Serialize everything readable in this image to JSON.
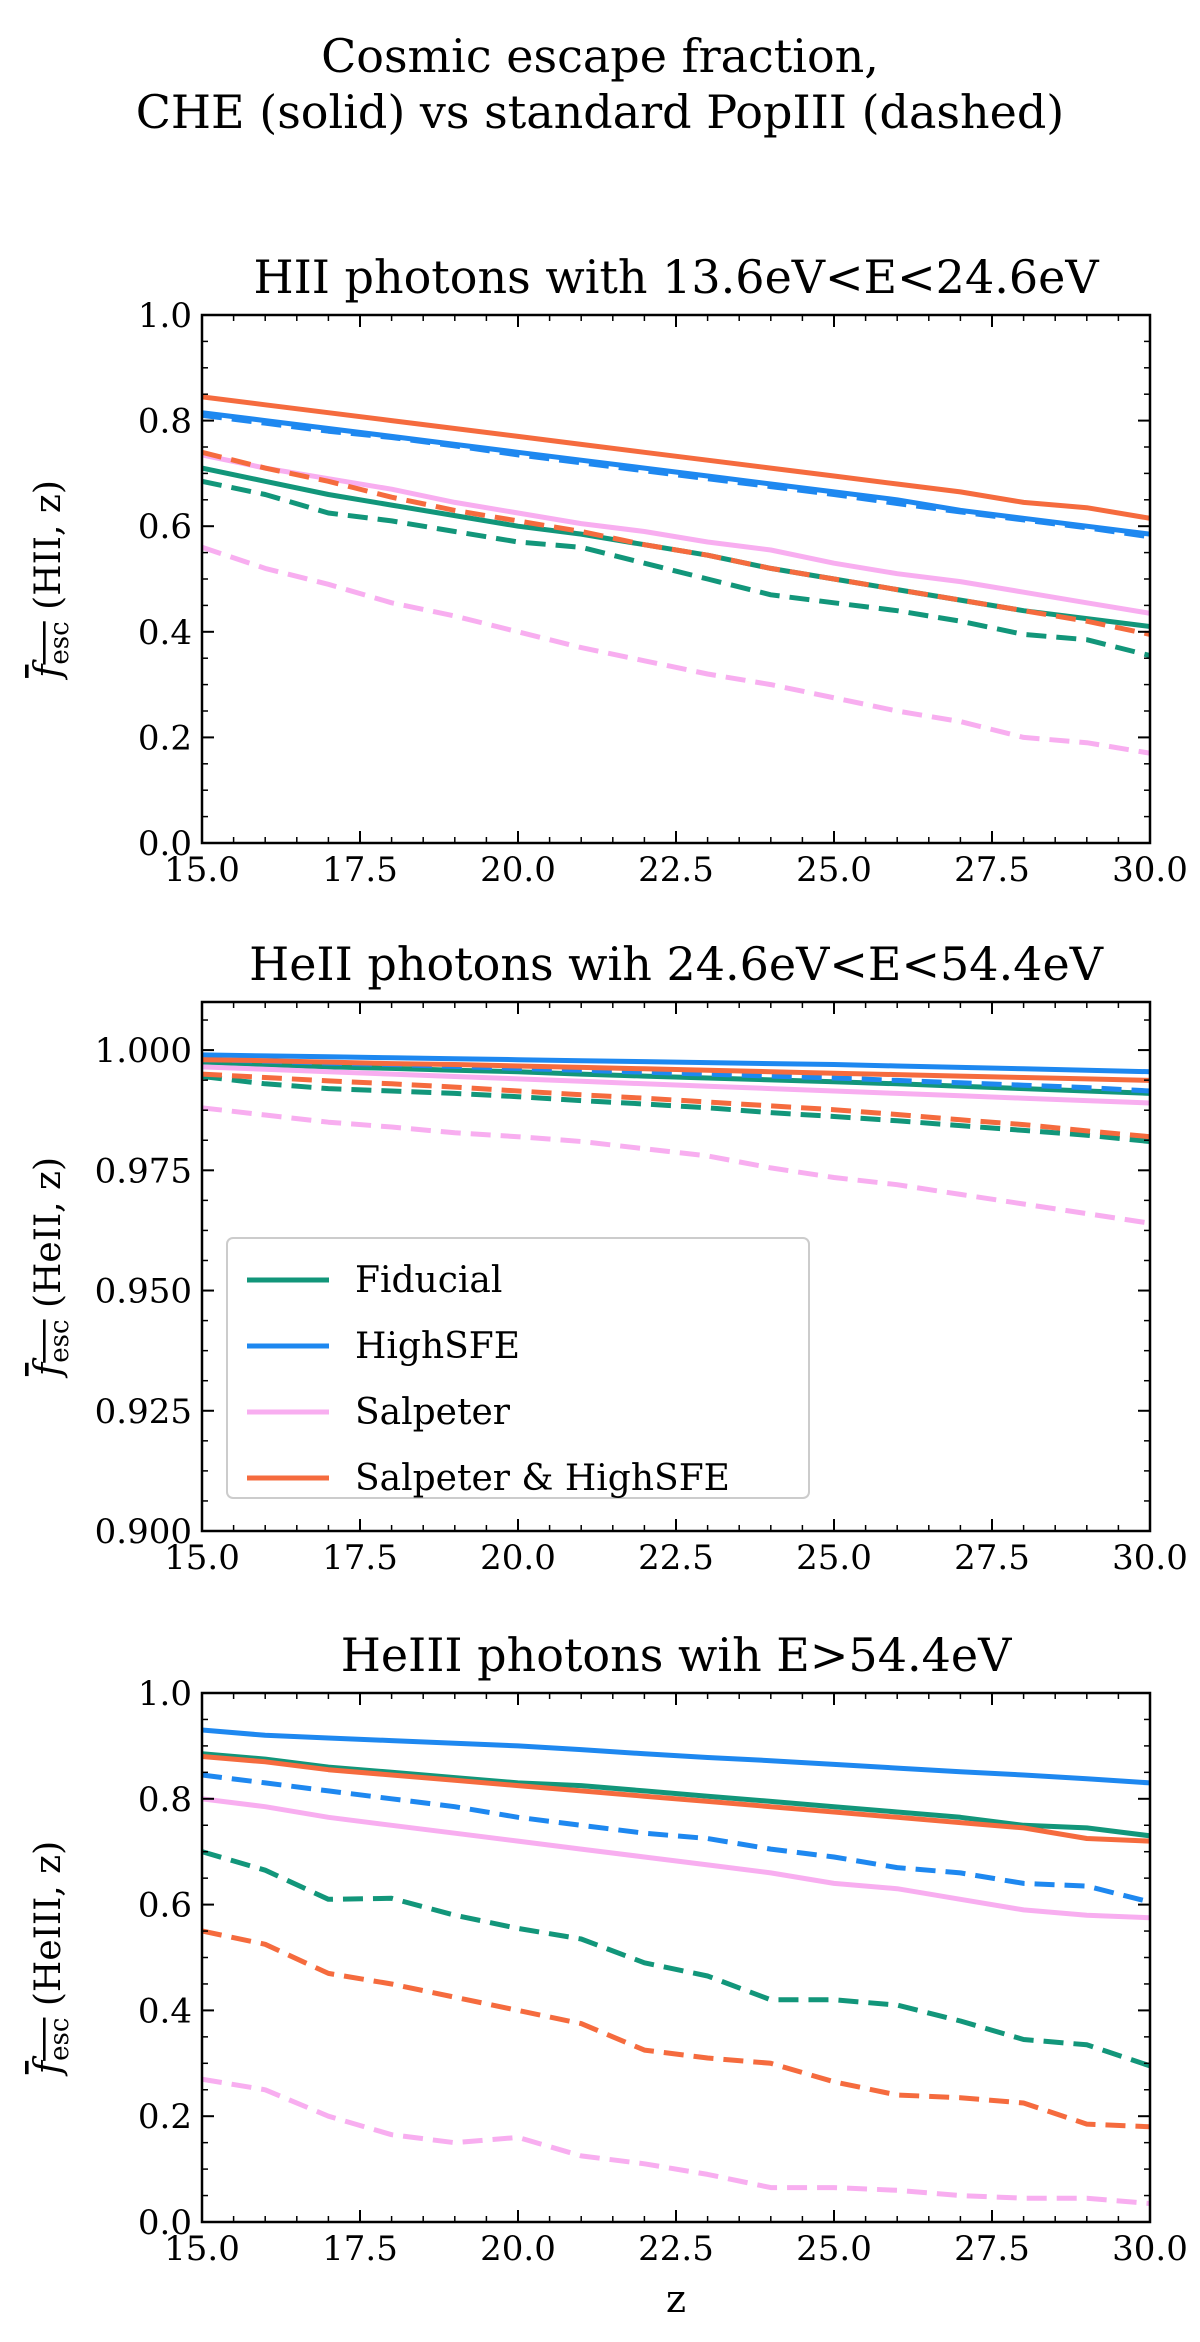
{
  "figure": {
    "title_line1": "Cosmic escape fraction,",
    "title_line2": "CHE (solid) vs standard PopIII (dashed)"
  },
  "colors": {
    "Fiducial": "#12967a",
    "HighSFE": "#1e88f0",
    "Salpeter": "#f8aef0",
    "Salpeter & HighSFE": "#f56b3e"
  },
  "chart_data": [
    {
      "type": "line",
      "title": "HII photons with 13.6eV<E<24.6eV",
      "xlabel": "",
      "ylabel": "f_esc (HII, z)",
      "ylabel_main": "f",
      "ylabel_sub": "esc",
      "ylabel_arg": " (HII, z)",
      "xlim": [
        15,
        30
      ],
      "ylim": [
        0,
        1
      ],
      "xticks": [
        15,
        17.5,
        20,
        22.5,
        25,
        27.5,
        30
      ],
      "xtick_labels": [
        "15.0",
        "17.5",
        "20.0",
        "22.5",
        "25.0",
        "27.5",
        "30.0"
      ],
      "yticks": [
        0,
        0.2,
        0.4,
        0.6,
        0.8,
        1.0
      ],
      "ytick_labels": [
        "0.0",
        "0.2",
        "0.4",
        "0.6",
        "0.8",
        "1.0"
      ],
      "x": [
        15,
        16,
        17,
        18,
        19,
        20,
        21,
        22,
        23,
        24,
        25,
        26,
        27,
        28,
        29,
        30
      ],
      "series": [
        {
          "name": "Fiducial",
          "style": "solid",
          "values": [
            0.71,
            0.685,
            0.66,
            0.64,
            0.62,
            0.6,
            0.585,
            0.565,
            0.545,
            0.52,
            0.5,
            0.48,
            0.46,
            0.44,
            0.425,
            0.41
          ]
        },
        {
          "name": "Fiducial",
          "style": "dashed",
          "values": [
            0.685,
            0.66,
            0.625,
            0.61,
            0.59,
            0.57,
            0.56,
            0.53,
            0.5,
            0.47,
            0.455,
            0.44,
            0.42,
            0.395,
            0.385,
            0.355
          ]
        },
        {
          "name": "HighSFE",
          "style": "solid",
          "values": [
            0.815,
            0.8,
            0.785,
            0.77,
            0.755,
            0.74,
            0.725,
            0.71,
            0.695,
            0.68,
            0.665,
            0.65,
            0.63,
            0.615,
            0.6,
            0.585
          ]
        },
        {
          "name": "HighSFE",
          "style": "dashed",
          "values": [
            0.81,
            0.795,
            0.78,
            0.768,
            0.752,
            0.735,
            0.72,
            0.705,
            0.69,
            0.675,
            0.66,
            0.643,
            0.627,
            0.612,
            0.597,
            0.58
          ]
        },
        {
          "name": "Salpeter",
          "style": "solid",
          "values": [
            0.735,
            0.71,
            0.69,
            0.67,
            0.645,
            0.625,
            0.605,
            0.59,
            0.57,
            0.555,
            0.53,
            0.51,
            0.495,
            0.475,
            0.455,
            0.435
          ]
        },
        {
          "name": "Salpeter",
          "style": "dashed",
          "values": [
            0.56,
            0.52,
            0.49,
            0.455,
            0.43,
            0.4,
            0.37,
            0.345,
            0.32,
            0.3,
            0.275,
            0.25,
            0.23,
            0.2,
            0.19,
            0.17
          ]
        },
        {
          "name": "Salpeter & HighSFE",
          "style": "solid",
          "values": [
            0.845,
            0.83,
            0.815,
            0.8,
            0.785,
            0.77,
            0.755,
            0.74,
            0.725,
            0.71,
            0.695,
            0.68,
            0.665,
            0.645,
            0.635,
            0.615
          ]
        },
        {
          "name": "Salpeter & HighSFE",
          "style": "dashed",
          "values": [
            0.74,
            0.71,
            0.685,
            0.655,
            0.63,
            0.61,
            0.59,
            0.565,
            0.545,
            0.52,
            0.5,
            0.48,
            0.46,
            0.44,
            0.42,
            0.395
          ]
        }
      ]
    },
    {
      "type": "line",
      "title": "HeII photons wih 24.6eV<E<54.4eV",
      "xlabel": "",
      "ylabel": "f_esc (HeII, z)",
      "ylabel_main": "f",
      "ylabel_sub": "esc",
      "ylabel_arg": " (HeII, z)",
      "xlim": [
        15,
        30
      ],
      "ylim": [
        0.9,
        1.01
      ],
      "xticks": [
        15,
        17.5,
        20,
        22.5,
        25,
        27.5,
        30
      ],
      "xtick_labels": [
        "15.0",
        "17.5",
        "20.0",
        "22.5",
        "25.0",
        "27.5",
        "30.0"
      ],
      "yticks": [
        0.9,
        0.925,
        0.95,
        0.975,
        1.0
      ],
      "ytick_labels": [
        "0.900",
        "0.925",
        "0.950",
        "0.975",
        "1.000"
      ],
      "x": [
        15,
        16,
        17,
        18,
        19,
        20,
        21,
        22,
        23,
        24,
        25,
        26,
        27,
        28,
        29,
        30
      ],
      "series": [
        {
          "name": "Fiducial",
          "style": "solid",
          "values": [
            0.9975,
            0.997,
            0.9965,
            0.9962,
            0.9958,
            0.9955,
            0.995,
            0.9946,
            0.9942,
            0.9938,
            0.9934,
            0.993,
            0.9925,
            0.992,
            0.9915,
            0.991
          ]
        },
        {
          "name": "Fiducial",
          "style": "dashed",
          "values": [
            0.9945,
            0.993,
            0.992,
            0.9915,
            0.991,
            0.9903,
            0.9895,
            0.9888,
            0.988,
            0.987,
            0.9862,
            0.9853,
            0.9843,
            0.9833,
            0.9823,
            0.981
          ]
        },
        {
          "name": "HighSFE",
          "style": "solid",
          "values": [
            0.999,
            0.9988,
            0.9986,
            0.9984,
            0.9982,
            0.998,
            0.9978,
            0.9976,
            0.9974,
            0.9972,
            0.997,
            0.9967,
            0.9964,
            0.9961,
            0.9958,
            0.9955
          ]
        },
        {
          "name": "HighSFE",
          "style": "dashed",
          "values": [
            0.998,
            0.9977,
            0.9973,
            0.997,
            0.9966,
            0.9962,
            0.9958,
            0.9954,
            0.995,
            0.9946,
            0.9942,
            0.9937,
            0.9932,
            0.9927,
            0.9922,
            0.9915
          ]
        },
        {
          "name": "Salpeter",
          "style": "solid",
          "values": [
            0.9965,
            0.996,
            0.9955,
            0.995,
            0.9945,
            0.994,
            0.9935,
            0.993,
            0.9925,
            0.992,
            0.9915,
            0.991,
            0.9905,
            0.99,
            0.9895,
            0.989
          ]
        },
        {
          "name": "Salpeter",
          "style": "dashed",
          "values": [
            0.988,
            0.9865,
            0.985,
            0.984,
            0.9828,
            0.982,
            0.981,
            0.9795,
            0.978,
            0.9755,
            0.9735,
            0.972,
            0.97,
            0.968,
            0.966,
            0.964
          ]
        },
        {
          "name": "Salpeter & HighSFE",
          "style": "solid",
          "values": [
            0.998,
            0.9978,
            0.9975,
            0.9972,
            0.997,
            0.9967,
            0.9964,
            0.9961,
            0.9958,
            0.9955,
            0.9952,
            0.9949,
            0.9946,
            0.9943,
            0.994,
            0.9937
          ]
        },
        {
          "name": "Salpeter & HighSFE",
          "style": "dashed",
          "values": [
            0.995,
            0.9943,
            0.9936,
            0.993,
            0.9923,
            0.9915,
            0.9907,
            0.99,
            0.9892,
            0.9884,
            0.9876,
            0.9866,
            0.9855,
            0.9845,
            0.9832,
            0.982
          ]
        }
      ],
      "legend": {
        "location": "lower-left",
        "entries": [
          "Fiducial",
          "HighSFE",
          "Salpeter",
          "Salpeter & HighSFE"
        ]
      }
    },
    {
      "type": "line",
      "title": "HeIII photons wih E>54.4eV",
      "xlabel": "z",
      "ylabel": "f_esc (HeIII, z)",
      "ylabel_main": "f",
      "ylabel_sub": "esc",
      "ylabel_arg": " (HeIII, z)",
      "xlim": [
        15,
        30
      ],
      "ylim": [
        0,
        1
      ],
      "xticks": [
        15,
        17.5,
        20,
        22.5,
        25,
        27.5,
        30
      ],
      "xtick_labels": [
        "15.0",
        "17.5",
        "20.0",
        "22.5",
        "25.0",
        "27.5",
        "30.0"
      ],
      "yticks": [
        0,
        0.2,
        0.4,
        0.6,
        0.8,
        1.0
      ],
      "ytick_labels": [
        "0.0",
        "0.2",
        "0.4",
        "0.6",
        "0.8",
        "1.0"
      ],
      "x": [
        15,
        16,
        17,
        18,
        19,
        20,
        21,
        22,
        23,
        24,
        25,
        26,
        27,
        28,
        29,
        30
      ],
      "series": [
        {
          "name": "Fiducial",
          "style": "solid",
          "values": [
            0.885,
            0.875,
            0.86,
            0.85,
            0.84,
            0.83,
            0.825,
            0.815,
            0.805,
            0.795,
            0.785,
            0.775,
            0.765,
            0.75,
            0.745,
            0.73
          ]
        },
        {
          "name": "Fiducial",
          "style": "dashed",
          "values": [
            0.7,
            0.665,
            0.61,
            0.612,
            0.58,
            0.555,
            0.535,
            0.49,
            0.465,
            0.42,
            0.42,
            0.41,
            0.38,
            0.345,
            0.335,
            0.295
          ]
        },
        {
          "name": "HighSFE",
          "style": "solid",
          "values": [
            0.93,
            0.92,
            0.915,
            0.91,
            0.905,
            0.9,
            0.893,
            0.885,
            0.878,
            0.872,
            0.865,
            0.858,
            0.851,
            0.845,
            0.838,
            0.83
          ]
        },
        {
          "name": "HighSFE",
          "style": "dashed",
          "values": [
            0.845,
            0.83,
            0.815,
            0.8,
            0.785,
            0.765,
            0.75,
            0.735,
            0.725,
            0.705,
            0.69,
            0.67,
            0.66,
            0.64,
            0.635,
            0.605
          ]
        },
        {
          "name": "Salpeter",
          "style": "solid",
          "values": [
            0.8,
            0.785,
            0.765,
            0.75,
            0.735,
            0.72,
            0.705,
            0.69,
            0.675,
            0.66,
            0.64,
            0.63,
            0.61,
            0.59,
            0.58,
            0.575
          ]
        },
        {
          "name": "Salpeter",
          "style": "dashed",
          "values": [
            0.27,
            0.25,
            0.2,
            0.165,
            0.15,
            0.16,
            0.125,
            0.11,
            0.09,
            0.065,
            0.065,
            0.06,
            0.05,
            0.045,
            0.045,
            0.035
          ]
        },
        {
          "name": "Salpeter & HighSFE",
          "style": "solid",
          "values": [
            0.88,
            0.87,
            0.855,
            0.845,
            0.835,
            0.825,
            0.815,
            0.805,
            0.795,
            0.785,
            0.775,
            0.765,
            0.755,
            0.745,
            0.725,
            0.72
          ]
        },
        {
          "name": "Salpeter & HighSFE",
          "style": "dashed",
          "values": [
            0.55,
            0.525,
            0.47,
            0.45,
            0.425,
            0.4,
            0.375,
            0.325,
            0.31,
            0.3,
            0.265,
            0.24,
            0.235,
            0.225,
            0.185,
            0.18
          ]
        }
      ]
    }
  ]
}
